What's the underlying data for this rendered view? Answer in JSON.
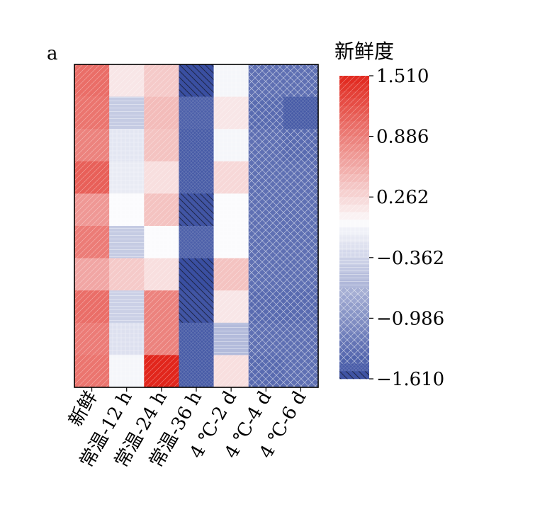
{
  "panel_label": "a",
  "chart_data": {
    "type": "heatmap",
    "x_categories": [
      "新鲜",
      "常温-12 h",
      "常温-24 h",
      "常温-36 h",
      "4 ℃-2 d",
      "4 ℃-4 d",
      "4 ℃-6 d"
    ],
    "row_count": 10,
    "values": [
      [
        1.0,
        0.15,
        0.35,
        -1.61,
        -0.05,
        -1.3,
        -1.3
      ],
      [
        0.95,
        -0.45,
        0.45,
        -1.45,
        0.15,
        -1.35,
        -1.5
      ],
      [
        0.85,
        -0.2,
        0.4,
        -1.5,
        -0.05,
        -1.3,
        -1.35
      ],
      [
        1.1,
        -0.15,
        0.2,
        -1.5,
        0.25,
        -1.3,
        -1.3
      ],
      [
        0.7,
        0.0,
        0.4,
        -1.55,
        0.0,
        -1.3,
        -1.3
      ],
      [
        0.9,
        -0.45,
        0.0,
        -1.45,
        0.0,
        -1.3,
        -1.3
      ],
      [
        0.6,
        0.35,
        0.2,
        -1.61,
        0.4,
        -1.3,
        -1.3
      ],
      [
        1.0,
        -0.4,
        0.85,
        -1.55,
        0.15,
        -1.35,
        -1.35
      ],
      [
        0.9,
        -0.25,
        0.85,
        -1.5,
        -0.6,
        -1.3,
        -1.3
      ],
      [
        0.95,
        -0.05,
        1.51,
        -1.5,
        0.2,
        -1.35,
        -1.3
      ]
    ],
    "colorbar": {
      "title": "新鲜度",
      "min": -1.61,
      "max": 1.51,
      "ticks": [
        1.51,
        0.886,
        0.262,
        -0.362,
        -0.986,
        -1.61
      ],
      "tick_labels": [
        "1.510",
        "0.886",
        "0.262",
        "−0.362",
        "−0.986",
        "−1.610"
      ]
    },
    "colormap": {
      "low": "#3a4fa1",
      "mid": "#fbfbfd",
      "high": "#e1261c"
    },
    "grid": false
  }
}
